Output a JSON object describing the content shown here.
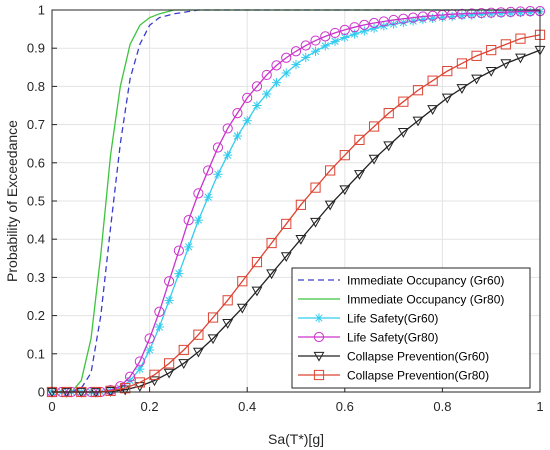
{
  "chart_data": {
    "type": "line",
    "title": "",
    "xlabel": "Sa(T*)[g]",
    "ylabel": "Probability of Exceedance",
    "xlim": [
      0,
      1
    ],
    "ylim": [
      0,
      1
    ],
    "xticks": [
      "0",
      "0.2",
      "0.4",
      "0.6",
      "0.8",
      "1"
    ],
    "yticks": [
      "0",
      "0.1",
      "0.2",
      "0.3",
      "0.4",
      "0.5",
      "0.6",
      "0.7",
      "0.8",
      "0.9",
      "1"
    ],
    "grid": true,
    "legend_position": "bottom-right",
    "series": [
      {
        "name": "Immediate Occupancy (Gr60)",
        "color": "#3b3bd1",
        "line": "dashed",
        "marker": "none",
        "x": [
          0.0,
          0.04,
          0.06,
          0.08,
          0.1,
          0.12,
          0.14,
          0.16,
          0.18,
          0.2,
          0.22,
          0.25,
          0.3,
          0.35,
          0.4,
          0.5,
          0.6,
          0.7,
          0.8,
          0.9,
          1.0
        ],
        "y": [
          0.0,
          0.0,
          0.01,
          0.05,
          0.2,
          0.43,
          0.65,
          0.82,
          0.91,
          0.96,
          0.98,
          0.99,
          1.0,
          1.0,
          1.0,
          1.0,
          1.0,
          1.0,
          1.0,
          1.0,
          1.0
        ]
      },
      {
        "name": "Immediate Occupancy (Gr80)",
        "color": "#3cc43c",
        "line": "solid",
        "marker": "none",
        "x": [
          0.0,
          0.04,
          0.06,
          0.08,
          0.1,
          0.12,
          0.14,
          0.16,
          0.18,
          0.2,
          0.22,
          0.25,
          0.3,
          0.35,
          0.4,
          0.5,
          0.6,
          0.7,
          0.8,
          0.9,
          1.0
        ],
        "y": [
          0.0,
          0.0,
          0.03,
          0.14,
          0.36,
          0.62,
          0.8,
          0.91,
          0.96,
          0.98,
          0.99,
          1.0,
          1.0,
          1.0,
          1.0,
          1.0,
          1.0,
          1.0,
          1.0,
          1.0,
          1.0
        ]
      },
      {
        "name": "Life Safety(Gr60)",
        "color": "#33ccee",
        "line": "solid",
        "marker": "asterisk",
        "x": [
          0.0,
          0.02,
          0.04,
          0.06,
          0.08,
          0.1,
          0.12,
          0.14,
          0.16,
          0.18,
          0.2,
          0.22,
          0.24,
          0.26,
          0.28,
          0.3,
          0.32,
          0.34,
          0.36,
          0.38,
          0.4,
          0.42,
          0.44,
          0.46,
          0.48,
          0.5,
          0.52,
          0.54,
          0.56,
          0.58,
          0.6,
          0.62,
          0.64,
          0.66,
          0.68,
          0.7,
          0.72,
          0.74,
          0.76,
          0.78,
          0.8,
          0.82,
          0.84,
          0.86,
          0.88,
          0.9,
          0.92,
          0.94,
          0.96,
          0.98,
          1.0
        ],
        "y": [
          0.0,
          0.0,
          0.0,
          0.0,
          0.0,
          0.0,
          0.003,
          0.01,
          0.03,
          0.06,
          0.11,
          0.17,
          0.24,
          0.31,
          0.38,
          0.45,
          0.51,
          0.57,
          0.62,
          0.67,
          0.71,
          0.75,
          0.78,
          0.81,
          0.835,
          0.857,
          0.876,
          0.892,
          0.906,
          0.918,
          0.928,
          0.937,
          0.945,
          0.952,
          0.958,
          0.963,
          0.967,
          0.971,
          0.975,
          0.978,
          0.981,
          0.983,
          0.985,
          0.987,
          0.989,
          0.99,
          0.991,
          0.992,
          0.993,
          0.994,
          0.995
        ]
      },
      {
        "name": "Life Safety(Gr80)",
        "color": "#cc33cc",
        "line": "solid",
        "marker": "circle",
        "x": [
          0.0,
          0.02,
          0.04,
          0.06,
          0.08,
          0.1,
          0.12,
          0.14,
          0.16,
          0.18,
          0.2,
          0.22,
          0.24,
          0.26,
          0.28,
          0.3,
          0.32,
          0.34,
          0.36,
          0.38,
          0.4,
          0.42,
          0.44,
          0.46,
          0.48,
          0.5,
          0.52,
          0.54,
          0.56,
          0.58,
          0.6,
          0.62,
          0.64,
          0.66,
          0.68,
          0.7,
          0.72,
          0.74,
          0.76,
          0.78,
          0.8,
          0.82,
          0.84,
          0.86,
          0.88,
          0.9,
          0.92,
          0.94,
          0.96,
          0.98,
          1.0
        ],
        "y": [
          0.0,
          0.0,
          0.0,
          0.0,
          0.0,
          0.0,
          0.005,
          0.015,
          0.04,
          0.08,
          0.14,
          0.21,
          0.29,
          0.37,
          0.45,
          0.52,
          0.58,
          0.64,
          0.69,
          0.73,
          0.77,
          0.8,
          0.83,
          0.855,
          0.875,
          0.892,
          0.907,
          0.92,
          0.931,
          0.94,
          0.948,
          0.955,
          0.961,
          0.966,
          0.97,
          0.974,
          0.977,
          0.98,
          0.983,
          0.985,
          0.987,
          0.989,
          0.99,
          0.991,
          0.992,
          0.993,
          0.994,
          0.995,
          0.996,
          0.997,
          0.997
        ]
      },
      {
        "name": "Collapse Prevention(Gr60)",
        "color": "#222222",
        "line": "solid",
        "marker": "triangle-down",
        "x": [
          0.0,
          0.03,
          0.06,
          0.09,
          0.12,
          0.15,
          0.18,
          0.21,
          0.24,
          0.27,
          0.3,
          0.33,
          0.36,
          0.39,
          0.42,
          0.45,
          0.48,
          0.51,
          0.54,
          0.57,
          0.6,
          0.63,
          0.66,
          0.69,
          0.72,
          0.75,
          0.78,
          0.81,
          0.84,
          0.87,
          0.9,
          0.93,
          0.96,
          1.0
        ],
        "y": [
          0.0,
          0.0,
          0.0,
          0.0,
          0.002,
          0.006,
          0.015,
          0.03,
          0.05,
          0.075,
          0.105,
          0.14,
          0.18,
          0.22,
          0.265,
          0.31,
          0.355,
          0.4,
          0.445,
          0.49,
          0.53,
          0.57,
          0.61,
          0.645,
          0.68,
          0.71,
          0.74,
          0.77,
          0.795,
          0.82,
          0.84,
          0.86,
          0.875,
          0.895
        ]
      },
      {
        "name": "Collapse Prevention(Gr80)",
        "color": "#dd4433",
        "line": "solid",
        "marker": "square",
        "x": [
          0.0,
          0.03,
          0.06,
          0.09,
          0.12,
          0.15,
          0.18,
          0.21,
          0.24,
          0.27,
          0.3,
          0.33,
          0.36,
          0.39,
          0.42,
          0.45,
          0.48,
          0.51,
          0.54,
          0.57,
          0.6,
          0.63,
          0.66,
          0.69,
          0.72,
          0.75,
          0.78,
          0.81,
          0.84,
          0.87,
          0.9,
          0.93,
          0.96,
          1.0
        ],
        "y": [
          0.0,
          0.0,
          0.0,
          0.0,
          0.003,
          0.01,
          0.025,
          0.045,
          0.075,
          0.11,
          0.15,
          0.195,
          0.24,
          0.29,
          0.34,
          0.39,
          0.44,
          0.49,
          0.535,
          0.58,
          0.62,
          0.66,
          0.695,
          0.73,
          0.76,
          0.79,
          0.815,
          0.84,
          0.86,
          0.88,
          0.895,
          0.91,
          0.925,
          0.935
        ]
      }
    ]
  }
}
